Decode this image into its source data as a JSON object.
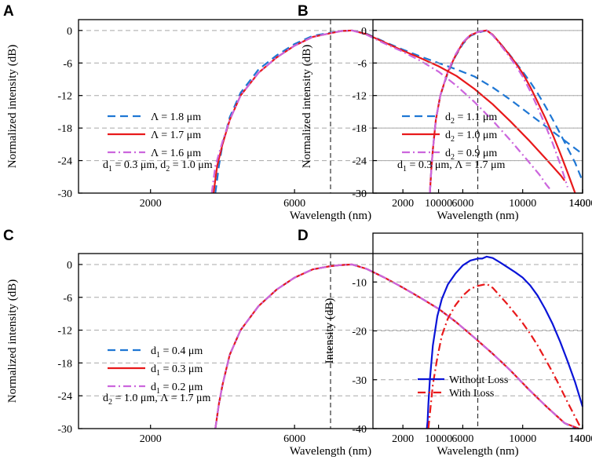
{
  "chart_data": [
    {
      "panel": "A",
      "type": "line",
      "xlabel": "Wavelength (nm)",
      "ylabel": "Normalized intensity (dB)",
      "xlim": [
        0,
        14000
      ],
      "ylim": [
        -30,
        2
      ],
      "xticks": [
        2000,
        6000,
        10000,
        14000
      ],
      "yticks": [
        0,
        -6,
        -12,
        -18,
        -24,
        -30
      ],
      "vline": 7000,
      "annotation": {
        "pre": "d",
        "sub": "1",
        "post": " = 0.3 μm, d",
        "sub2": "2",
        "post2": " = 1.0 μm"
      },
      "series": [
        {
          "legend_pre": "Λ = 1.8 μm",
          "legend_sub": "",
          "legend_post": "",
          "color": "#1f77d4",
          "dash": "10,6",
          "name": "Λ = 1.8 μm",
          "x": [
            3800,
            3900,
            4000,
            4200,
            4500,
            5000,
            5500,
            6000,
            6500,
            7000,
            7300,
            7600,
            8000,
            8500,
            9000,
            9500,
            10000,
            10500,
            11000,
            11500,
            12000,
            12500,
            13000,
            13500,
            14000
          ],
          "y": [
            -30,
            -25,
            -21,
            -16,
            -11.5,
            -7.2,
            -4.6,
            -2.5,
            -1.0,
            -0.4,
            -0.1,
            0,
            -0.6,
            -2.1,
            -3.5,
            -4.8,
            -6.0,
            -7.2,
            -8.5,
            -10.5,
            -12.8,
            -15.3,
            -17.8,
            -20.3,
            -22.8
          ]
        },
        {
          "legend_pre": "Λ = 1.7 μm",
          "legend_sub": "",
          "legend_post": "",
          "color": "#e8191b",
          "dash": "",
          "name": "Λ = 1.7 μm",
          "x": [
            3750,
            3850,
            4000,
            4200,
            4500,
            5000,
            5500,
            6000,
            6500,
            7000,
            7300,
            7600,
            8000,
            8500,
            9000,
            9500,
            10000,
            10500,
            11000,
            11500,
            12000,
            12500,
            13000,
            13400,
            13500
          ],
          "y": [
            -30,
            -25,
            -21,
            -16.5,
            -12,
            -7.8,
            -5.0,
            -2.8,
            -1.2,
            -0.5,
            -0.1,
            0,
            -0.7,
            -2.2,
            -3.7,
            -5.1,
            -6.6,
            -8.4,
            -10.8,
            -13.6,
            -16.8,
            -20.2,
            -23.8,
            -26.8,
            -27.7
          ]
        },
        {
          "legend_pre": "Λ = 1.6 μm",
          "legend_sub": "",
          "legend_post": "",
          "color": "#cc66dd",
          "dash": "10,4,2,4",
          "name": "Λ = 1.6 μm",
          "x": [
            3700,
            3800,
            4000,
            4200,
            4500,
            5000,
            5500,
            6000,
            6500,
            7000,
            7300,
            7600,
            8000,
            8500,
            9000,
            9500,
            10000,
            10500,
            11000,
            11500,
            12000,
            12500,
            12800,
            13000,
            13100
          ],
          "y": [
            -30,
            -25,
            -20.5,
            -16.5,
            -12,
            -7.8,
            -5.0,
            -2.8,
            -1.2,
            -0.5,
            -0.1,
            0,
            -0.8,
            -2.4,
            -3.9,
            -5.6,
            -7.6,
            -10.2,
            -13.2,
            -16.6,
            -20.3,
            -24.2,
            -26.6,
            -28.5,
            -29.3
          ]
        }
      ]
    },
    {
      "panel": "B",
      "type": "line",
      "xlabel": "Wavelength (nm)",
      "ylabel": "Normalized intensity (dB)",
      "xlim": [
        0,
        14000
      ],
      "ylim": [
        -30,
        2
      ],
      "xticks": [
        2000,
        6000,
        10000,
        14000
      ],
      "yticks": [
        0,
        -6,
        -12,
        -18,
        -24,
        -30
      ],
      "vline": 7000,
      "annotation": {
        "pre": "d",
        "sub": "1",
        "post": " = 0.3 μm, Λ = 1.7 μm",
        "sub2": "",
        "post2": ""
      },
      "series": [
        {
          "legend_pre": "d",
          "legend_sub": "2",
          "legend_post": " = 1.1 μm",
          "color": "#1f77d4",
          "dash": "10,6",
          "name": "d2 = 1.1 μm",
          "x": [
            3800,
            3900,
            4000,
            4200,
            4500,
            5000,
            5500,
            6000,
            6500,
            7000,
            7300,
            7600,
            8000,
            8500,
            9000,
            9500,
            10000,
            10500,
            11000,
            11500,
            12000,
            12500,
            13000,
            13500,
            14000
          ],
          "y": [
            -30,
            -25.5,
            -22,
            -16.5,
            -12,
            -7.8,
            -4.8,
            -2.5,
            -1.0,
            -0.4,
            -0.2,
            0,
            -0.8,
            -2.4,
            -4.0,
            -5.8,
            -7.6,
            -9.5,
            -11.6,
            -13.9,
            -16.4,
            -19.0,
            -21.7,
            -24.4,
            -27.8
          ]
        },
        {
          "legend_pre": "d",
          "legend_sub": "2",
          "legend_post": " = 1.0 μm",
          "color": "#e8191b",
          "dash": "",
          "name": "d2 = 1.0 μm",
          "x": [
            3800,
            3900,
            4000,
            4200,
            4500,
            5000,
            5500,
            6000,
            6500,
            7000,
            7300,
            7600,
            8000,
            8500,
            9000,
            9500,
            10000,
            10500,
            11000,
            11500,
            12000,
            12500,
            13000,
            13500
          ],
          "y": [
            -30,
            -25.5,
            -22,
            -16.5,
            -12,
            -7.6,
            -4.7,
            -2.3,
            -0.9,
            -0.3,
            -0.1,
            0,
            -0.8,
            -2.4,
            -4.1,
            -5.9,
            -7.9,
            -10.4,
            -13.2,
            -16.1,
            -19.2,
            -22.6,
            -26.2,
            -30
          ]
        },
        {
          "legend_pre": "d",
          "legend_sub": "2",
          "legend_post": " = 0.9 μm",
          "color": "#cc66dd",
          "dash": "10,4,2,4",
          "name": "d2 = 0.9 μm",
          "x": [
            3800,
            3900,
            4000,
            4200,
            4500,
            5000,
            5500,
            6000,
            6500,
            7000,
            7300,
            7600,
            8000,
            8500,
            9000,
            9500,
            10000,
            10500,
            11000,
            11500,
            12000,
            12500,
            13000
          ],
          "y": [
            -30,
            -25.5,
            -22,
            -16.5,
            -12,
            -7.5,
            -4.5,
            -2.2,
            -0.8,
            -0.3,
            -0.1,
            0,
            -0.9,
            -2.6,
            -4.4,
            -6.3,
            -8.5,
            -11.2,
            -14.2,
            -17.4,
            -20.8,
            -24.6,
            -28.9
          ]
        }
      ]
    },
    {
      "panel": "C",
      "type": "line",
      "xlabel": "Wavelength (nm)",
      "ylabel": "Normalized intensity (dB)",
      "xlim": [
        0,
        14000
      ],
      "ylim": [
        -30,
        2
      ],
      "xticks": [
        2000,
        6000,
        10000,
        14000
      ],
      "yticks": [
        0,
        -6,
        -12,
        -18,
        -24,
        -30
      ],
      "vline": 7000,
      "annotation": {
        "pre": "d",
        "sub": "2",
        "post": " = 1.0 μm, Λ = 1.7 μm",
        "sub2": "",
        "post2": ""
      },
      "series": [
        {
          "legend_pre": "d",
          "legend_sub": "1",
          "legend_post": " = 0.4 μm",
          "color": "#1f77d4",
          "dash": "10,6",
          "name": "d1 = 0.4 μm",
          "x": [
            3800,
            3900,
            4000,
            4200,
            4500,
            5000,
            5500,
            6000,
            6500,
            7000,
            7300,
            7600,
            8000,
            8500,
            9000,
            9500,
            10000,
            10500,
            11000,
            11500,
            12000,
            12500,
            13000,
            13500,
            13800
          ],
          "y": [
            -30,
            -25.5,
            -22,
            -16.5,
            -12,
            -7.6,
            -4.6,
            -2.4,
            -0.9,
            -0.3,
            -0.1,
            0,
            -0.8,
            -2.4,
            -4.2,
            -6.1,
            -8.1,
            -10.6,
            -13.4,
            -16.3,
            -19.4,
            -22.8,
            -26.0,
            -29.0,
            -30
          ]
        },
        {
          "legend_pre": "d",
          "legend_sub": "1",
          "legend_post": " = 0.3 μm",
          "color": "#e8191b",
          "dash": "",
          "name": "d1 = 0.3 μm",
          "x": [
            3800,
            3900,
            4000,
            4200,
            4500,
            5000,
            5500,
            6000,
            6500,
            7000,
            7300,
            7600,
            8000,
            8500,
            9000,
            9500,
            10000,
            10500,
            11000,
            11500,
            12000,
            12500,
            13000,
            13500,
            13900
          ],
          "y": [
            -30,
            -25.5,
            -22,
            -16.5,
            -12,
            -7.6,
            -4.6,
            -2.4,
            -0.9,
            -0.3,
            -0.1,
            0,
            -0.8,
            -2.4,
            -4.2,
            -6.1,
            -8.1,
            -10.6,
            -13.4,
            -16.3,
            -19.4,
            -22.8,
            -26.0,
            -29.0,
            -30
          ]
        },
        {
          "legend_pre": "d",
          "legend_sub": "1",
          "legend_post": " = 0.2 μm",
          "color": "#cc66dd",
          "dash": "10,4,2,4",
          "name": "d1 = 0.2 μm",
          "x": [
            3800,
            3900,
            4000,
            4200,
            4500,
            5000,
            5500,
            6000,
            6500,
            7000,
            7300,
            7600,
            8000,
            8500,
            9000,
            9500,
            10000,
            10500,
            11000,
            11500,
            12000,
            12500,
            13000,
            13500,
            13850
          ],
          "y": [
            -30,
            -25.5,
            -22,
            -16.5,
            -12,
            -7.6,
            -4.6,
            -2.4,
            -0.9,
            -0.3,
            -0.1,
            0,
            -0.8,
            -2.4,
            -4.2,
            -6.1,
            -8.1,
            -10.6,
            -13.4,
            -16.3,
            -19.4,
            -22.8,
            -26.0,
            -29.0,
            -30
          ]
        }
      ]
    },
    {
      "panel": "D",
      "type": "line",
      "xlabel": "Wavelength (nm)",
      "ylabel": "Intensity (dB)",
      "xlim": [
        0,
        14000
      ],
      "ylim": [
        -40,
        0
      ],
      "xticks": [
        2000,
        6000,
        10000,
        14000
      ],
      "yticks": [
        -10,
        -20,
        -30,
        -40
      ],
      "vline": 7000,
      "annotation": null,
      "series": [
        {
          "legend_pre": "Without Loss",
          "legend_sub": "",
          "legend_post": "",
          "color": "#0a14d8",
          "dash": "",
          "name": "Without Loss",
          "x": [
            3600,
            3650,
            3700,
            3800,
            4000,
            4300,
            4600,
            5000,
            5500,
            6000,
            6500,
            7000,
            7300,
            7600,
            8000,
            8500,
            9000,
            9500,
            10000,
            10500,
            11000,
            11500,
            12000,
            12500,
            13000,
            13500,
            14000
          ],
          "y": [
            -40,
            -38.5,
            -35,
            -30,
            -23,
            -17,
            -13.5,
            -10.5,
            -8.3,
            -6.6,
            -5.6,
            -5.2,
            -5.2,
            -4.8,
            -5.1,
            -6.0,
            -7.0,
            -8.0,
            -9.1,
            -10.7,
            -12.8,
            -15.5,
            -18.6,
            -22.2,
            -26.2,
            -30.5,
            -35.5
          ]
        },
        {
          "legend_pre": "With Loss",
          "legend_sub": "",
          "legend_post": "",
          "color": "#e8191b",
          "dash": "10,4,2,4",
          "name": "With Loss",
          "x": [
            3700,
            3800,
            4000,
            4300,
            4600,
            5000,
            5500,
            6000,
            6500,
            7000,
            7300,
            7600,
            8000,
            8500,
            9000,
            9500,
            10000,
            10500,
            11000,
            11500,
            12000,
            12500,
            13000,
            13500,
            13900
          ],
          "y": [
            -40,
            -37,
            -31,
            -25.5,
            -21,
            -17.5,
            -14.8,
            -12.8,
            -11.4,
            -10.8,
            -10.6,
            -10.4,
            -11.2,
            -12.9,
            -14.6,
            -16.5,
            -18.4,
            -20.6,
            -23.0,
            -25.7,
            -28.5,
            -31.5,
            -34.6,
            -37.6,
            -40
          ]
        }
      ]
    }
  ]
}
